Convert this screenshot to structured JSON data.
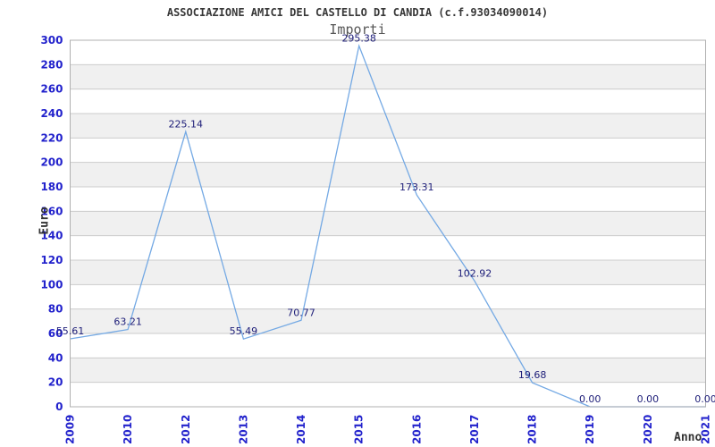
{
  "chart_data": {
    "type": "line",
    "title": "ASSOCIAZIONE AMICI DEL CASTELLO DI CANDIA (c.f.93034090014)",
    "subtitle": "Importi",
    "xlabel": "Anno",
    "ylabel": "Euro",
    "categories": [
      "2009",
      "2010",
      "2012",
      "2013",
      "2014",
      "2015",
      "2016",
      "2017",
      "2018",
      "2019",
      "2020",
      "2021"
    ],
    "series": [
      {
        "name": "Importi",
        "values": [
          55.61,
          63.21,
          225.14,
          55.49,
          70.77,
          295.38,
          173.31,
          102.92,
          19.68,
          0,
          0,
          0
        ]
      }
    ],
    "point_labels": [
      "55.61",
      "63.21",
      "225.14",
      "55.49",
      "70.77",
      "295.38",
      "173.31",
      "102.92",
      "19.68",
      "0.00",
      "0.00",
      "0.00"
    ],
    "ylim": [
      0,
      300
    ],
    "ytick_step": 20,
    "grid": true,
    "legend": "none",
    "colors": {
      "line": "#74a9e4",
      "tick_label": "#2222cc",
      "point_label": "#20207a",
      "title": "#383838",
      "subtitle": "#575757",
      "axis_title": "#333333",
      "grid": "#cccccc",
      "band": "#f0f0f0",
      "border": "#b0b0b0",
      "background": "#ffffff"
    }
  }
}
